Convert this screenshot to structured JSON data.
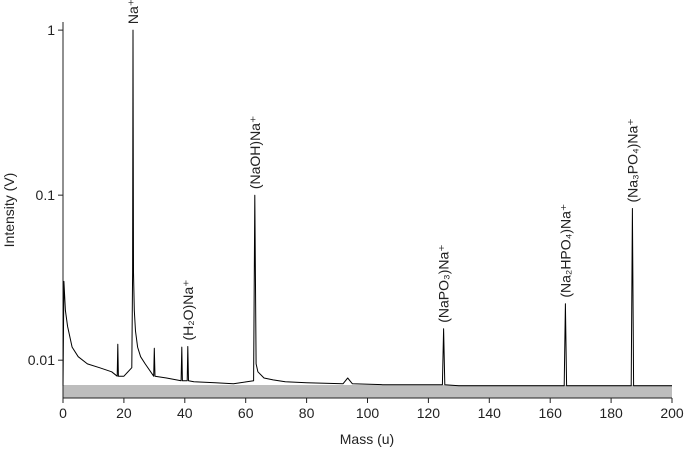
{
  "chart_data": {
    "type": "line",
    "x_label": "Mass (u)",
    "y_label": "Intensity (V)",
    "log_y": true,
    "xlim": [
      0,
      200
    ],
    "ylim": [
      0.0059,
      1.12
    ],
    "xticks": [
      0,
      20,
      40,
      60,
      80,
      100,
      120,
      140,
      160,
      180,
      200
    ],
    "yticks": [
      0.01,
      0.1,
      1
    ],
    "series": [
      {
        "color": "#000000",
        "x": [
          0,
          0.3,
          0.8,
          1.5,
          3,
          5,
          8,
          12,
          16,
          17.8,
          18,
          18.2,
          20,
          22.6,
          22.85,
          23,
          23.15,
          23.4,
          23.8,
          24.5,
          25.5,
          27,
          29.8,
          30,
          30.2,
          34,
          38.8,
          39,
          39.2,
          40.8,
          41,
          41.2,
          43,
          50,
          56,
          62.6,
          63,
          63.4,
          64,
          66,
          69,
          73,
          80,
          92,
          93.5,
          95,
          105,
          115,
          124.6,
          125,
          125.4,
          130,
          143,
          150,
          164.6,
          165,
          165.4,
          172,
          182,
          186.6,
          187,
          187.4,
          193,
          200
        ],
        "values": [
          0.007,
          0.03,
          0.02,
          0.016,
          0.012,
          0.0105,
          0.0095,
          0.009,
          0.0085,
          0.008,
          0.0125,
          0.008,
          0.008,
          0.009,
          0.034,
          1,
          0.034,
          0.02,
          0.015,
          0.012,
          0.0105,
          0.0095,
          0.008,
          0.0118,
          0.008,
          0.0078,
          0.0075,
          0.012,
          0.0075,
          0.0075,
          0.0121,
          0.0075,
          0.0074,
          0.0073,
          0.0072,
          0.0075,
          0.1,
          0.0095,
          0.0085,
          0.0078,
          0.0076,
          0.0074,
          0.0073,
          0.0072,
          0.0078,
          0.0072,
          0.0071,
          0.0071,
          0.0071,
          0.0155,
          0.0071,
          0.007,
          0.007,
          0.007,
          0.007,
          0.022,
          0.007,
          0.007,
          0.007,
          0.007,
          0.083,
          0.007,
          0.007,
          0.007
        ]
      }
    ],
    "annotations": [
      {
        "text": "Na⁺",
        "x": 23,
        "y": 1
      },
      {
        "text": "(H₂O)Na⁺",
        "x": 41,
        "y": 0.0121
      },
      {
        "text": "(NaOH)Na⁺",
        "x": 63,
        "y": 0.1
      },
      {
        "text": "(NaPO₃)Na⁺",
        "x": 125,
        "y": 0.0155
      },
      {
        "text": "(Na₂HPO₄)Na⁺",
        "x": 165,
        "y": 0.022
      },
      {
        "text": "(Na₃PO₄)Na⁺",
        "x": 187,
        "y": 0.083
      }
    ]
  }
}
